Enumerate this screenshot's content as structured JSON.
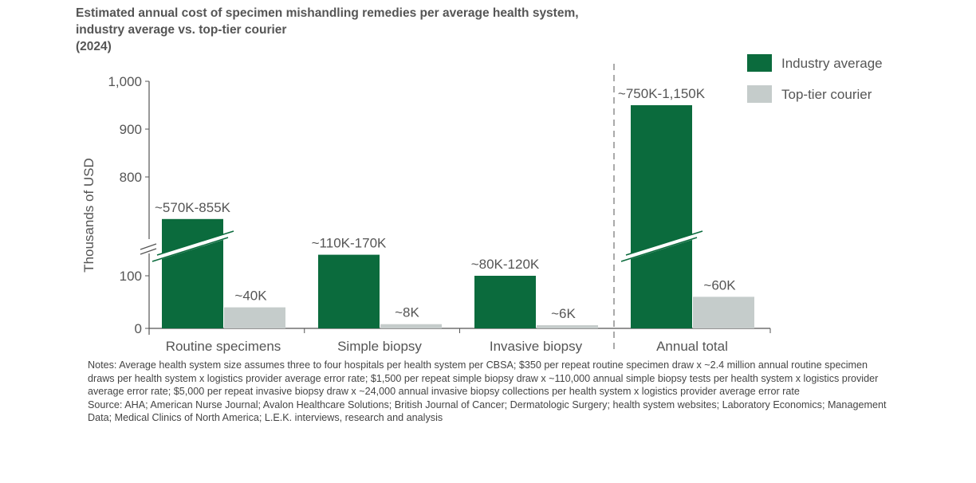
{
  "title_lines": [
    "Estimated annual cost of specimen mishandling remedies per average health system,",
    "industry average vs. top-tier courier",
    "(2024)"
  ],
  "chart_data": {
    "type": "bar",
    "ylabel": "Thousands of USD",
    "axis_break": true,
    "yticks": [
      "0",
      "100",
      "800",
      "900",
      "1,000"
    ],
    "ytick_values": [
      0,
      100,
      800,
      900,
      1000
    ],
    "categories": [
      "Routine specimens",
      "Simple biopsy",
      "Invasive biopsy",
      "Annual total"
    ],
    "series": [
      {
        "name": "Industry average",
        "color": "#0b6b3d",
        "values": [
          712,
          140,
          100,
          950
        ],
        "labels": [
          "~570K-855K",
          "~110K-170K",
          "~80K-120K",
          "~750K-1,150K"
        ]
      },
      {
        "name": "Top-tier courier",
        "color": "#c5cccb",
        "values": [
          40,
          8,
          6,
          60
        ],
        "labels": [
          "~40K",
          "~8K",
          "~6K",
          "~60K"
        ]
      }
    ],
    "legend_position": "top-right",
    "grid": false
  },
  "notes": "Notes: Average health system size assumes three to four hospitals per health system per CBSA; $350 per repeat routine specimen draw x ~2.4 million annual routine specimen draws per health system x logistics provider average error rate; $1,500 per repeat simple biopsy draw x ~110,000 annual simple biopsy tests per health system x logistics provider average error rate; $5,000 per repeat invasive biopsy draw x ~24,000 annual invasive biopsy collections per health system x logistics provider average error rate",
  "source": "Source: AHA; American Nurse Journal; Avalon Healthcare Solutions; British Journal of Cancer; Dermatologic Surgery; health system websites; Laboratory Economics; Management Data; Medical Clinics of North America; L.E.K. interviews, research and analysis"
}
